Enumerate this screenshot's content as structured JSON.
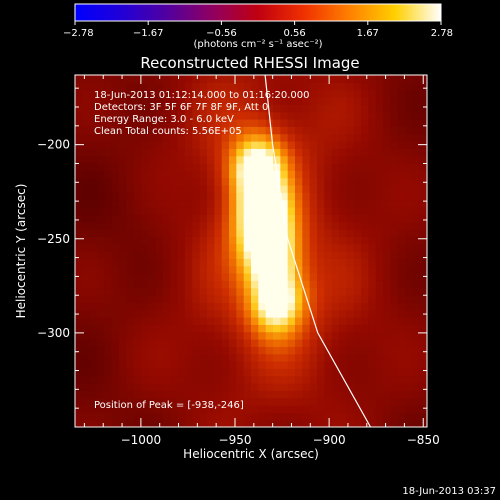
{
  "chart_data": {
    "type": "heatmap",
    "title": "Reconstructed RHESSI Image",
    "xlabel": "Heliocentric X (arcsec)",
    "ylabel": "Heliocentric Y (arcsec)",
    "xlim": [
      -1035,
      -848
    ],
    "ylim": [
      -350,
      -163
    ],
    "x_ticks": [
      {
        "value": -1000,
        "label": "−1000"
      },
      {
        "value": -950,
        "label": "−950"
      },
      {
        "value": -900,
        "label": "−900"
      },
      {
        "value": -850,
        "label": "−850"
      }
    ],
    "y_ticks": [
      {
        "value": -200,
        "label": "−200"
      },
      {
        "value": -250,
        "label": "−250"
      },
      {
        "value": -300,
        "label": "−300"
      }
    ],
    "colorbar": {
      "min": -2.78,
      "max": 2.78,
      "tick_labels": [
        "−2.78",
        "−1.67",
        "−0.56",
        "0.56",
        "1.67",
        "2.78"
      ],
      "units_label": "(photons cm⁻² s⁻¹ asec⁻²)",
      "colors": [
        "#0000ff",
        "#2000d8",
        "#5000a0",
        "#900060",
        "#c00010",
        "#f03000",
        "#ff8000",
        "#ffd000",
        "#ffffff"
      ]
    },
    "annotations": [
      "18-Jun-2013 01:12:14.000 to 01:16:20.000",
      "Detectors: 3F 5F 6F 7F 8F 9F, Att 0",
      "Energy Range: 3.0 - 6.0 keV",
      "Clean    Total counts: 5.56E+05"
    ],
    "peak_label": "Position of Peak = [-938,-246]",
    "peak": {
      "x": -938,
      "y": -246
    },
    "source": {
      "center_top": [
        -938,
        -215
      ],
      "center_bottom": [
        -928,
        -280
      ],
      "peak_value": 2.78,
      "background_value": 0.9
    },
    "limb_curve": [
      [
        -934,
        -163
      ],
      [
        -930,
        -200
      ],
      [
        -922,
        -250
      ],
      [
        -906,
        -300
      ],
      [
        -878,
        -350
      ]
    ]
  },
  "footer": {
    "timestamp": "18-Jun-2013 03:37"
  }
}
